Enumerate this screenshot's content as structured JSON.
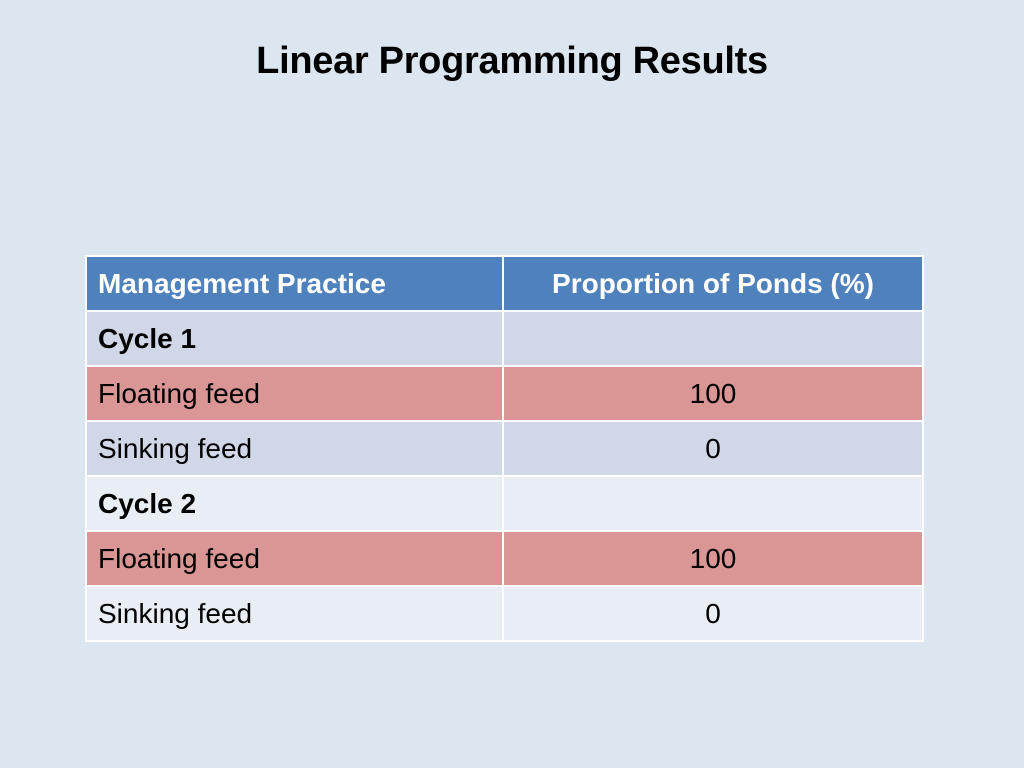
{
  "title": "Linear Programming Results",
  "table": {
    "headers": [
      "Management Practice",
      "Proportion of Ponds (%)"
    ],
    "rows": [
      {
        "label": "Cycle 1",
        "value": "",
        "kind": "cycle"
      },
      {
        "label": "Floating feed",
        "value": "100",
        "kind": "highlight"
      },
      {
        "label": "Sinking feed",
        "value": "0",
        "kind": "normal"
      },
      {
        "label": "Cycle 2",
        "value": "",
        "kind": "cycle"
      },
      {
        "label": "Floating feed",
        "value": "100",
        "kind": "highlight"
      },
      {
        "label": "Sinking feed",
        "value": "0",
        "kind": "normal"
      }
    ]
  },
  "colors": {
    "background": "#dce6f0",
    "header": "#4f81bd",
    "highlight_row": "#d99694",
    "band_dark": "#d0d8e8",
    "band_light": "#e9edf4"
  }
}
